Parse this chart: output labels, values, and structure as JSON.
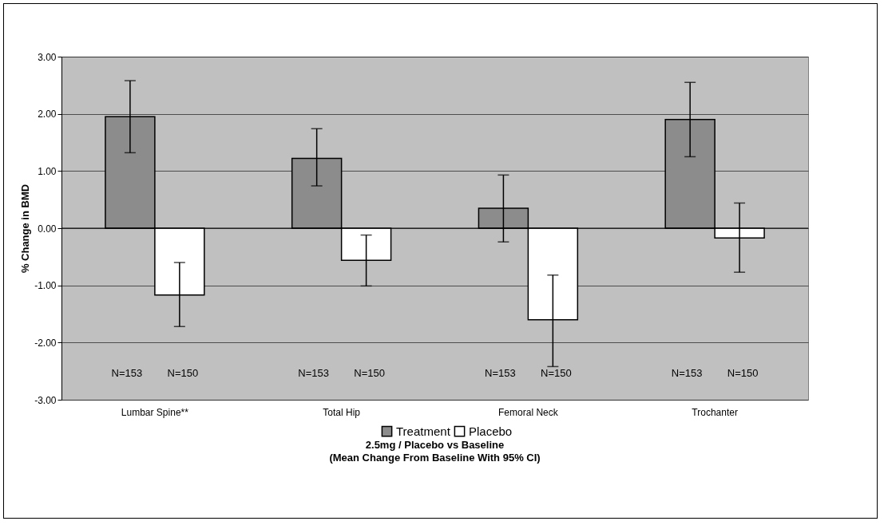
{
  "chart_data": {
    "type": "bar",
    "title": "2.5mg / Placebo vs Baseline",
    "subtitle": "(Mean Change From Baseline With 95% CI)",
    "ylabel": "% Change in BMD",
    "categories": [
      "Lumbar Spine**",
      "Total Hip",
      "Femoral Neck",
      "Trochanter"
    ],
    "series": [
      {
        "name": "Treatment",
        "color": "#8c8c8c",
        "values": [
          1.95,
          1.22,
          0.35,
          1.9
        ],
        "errors": [
          [
            1.32,
            2.58
          ],
          [
            0.74,
            1.74
          ],
          [
            -0.24,
            0.93
          ],
          [
            1.25,
            2.55
          ]
        ]
      },
      {
        "name": "Placebo",
        "color": "#ffffff",
        "values": [
          -1.17,
          -0.56,
          -1.6,
          -0.17
        ],
        "errors": [
          [
            -1.72,
            -0.6
          ],
          [
            -1.01,
            -0.12
          ],
          [
            -2.42,
            -0.82
          ],
          [
            -0.77,
            0.44
          ]
        ]
      }
    ],
    "ylim": [
      -3,
      3
    ],
    "yticks": [
      {
        "value": -3,
        "label": "-3.00"
      },
      {
        "value": -2,
        "label": "-2.00"
      },
      {
        "value": -1,
        "label": "-1.00"
      },
      {
        "value": 0,
        "label": "0.00"
      },
      {
        "value": 1,
        "label": "1.00"
      },
      {
        "value": 2,
        "label": "2.00"
      },
      {
        "value": 3,
        "label": "3.00"
      }
    ],
    "grid": "y",
    "legend": "bottom",
    "annotations": [
      "N=153",
      "N=150",
      "N=153",
      "N=150",
      "N=153",
      "N=150",
      "N=153",
      "N=150"
    ]
  }
}
